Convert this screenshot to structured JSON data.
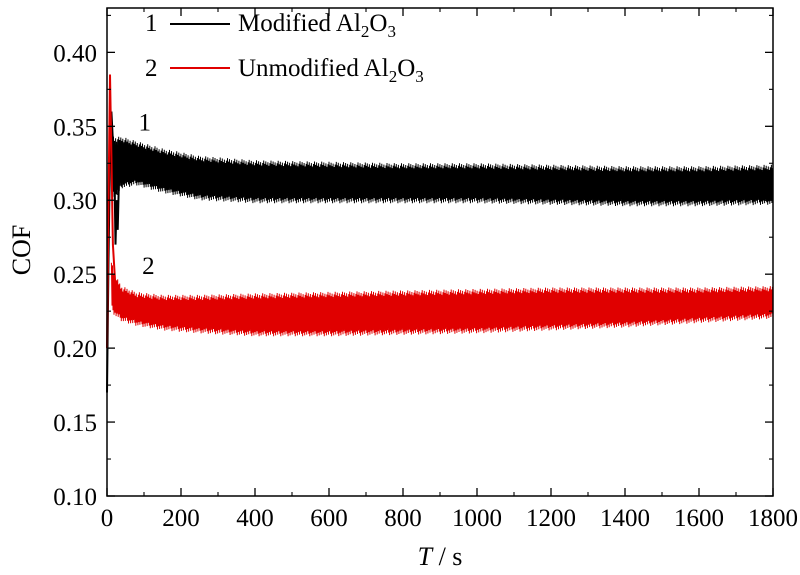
{
  "chart_data": {
    "type": "line",
    "xlabel_italic": "T",
    "xlabel_rest": " / s",
    "ylabel": "COF",
    "xlim": [
      0,
      1800
    ],
    "ylim": [
      0.1,
      0.43
    ],
    "xticks": [
      0,
      200,
      400,
      600,
      800,
      1000,
      1200,
      1400,
      1600,
      1800
    ],
    "yticks": [
      0.1,
      0.15,
      0.2,
      0.25,
      0.3,
      0.35,
      0.4
    ],
    "xtick_labels": [
      "0",
      "200",
      "400",
      "600",
      "800",
      "1000",
      "1200",
      "1400",
      "1600",
      "1800"
    ],
    "ytick_labels": [
      "0.10",
      "0.15",
      "0.20",
      "0.25",
      "0.30",
      "0.35",
      "0.40"
    ],
    "grid": false,
    "legend_position": "top-center",
    "series": [
      {
        "id": "1",
        "name": "Modified Al2O3",
        "legend_prefix": "Modified Al",
        "legend_sub1": "2",
        "legend_mid": "O",
        "legend_sub2": "3",
        "color": "#000000",
        "curve_label": "1",
        "label_at": [
          85,
          0.347
        ],
        "band": {
          "x": [
            12,
            20,
            40,
            80,
            150,
            250,
            400,
            600,
            800,
            1000,
            1200,
            1400,
            1600,
            1800
          ],
          "low": [
            0.305,
            0.3,
            0.308,
            0.31,
            0.305,
            0.3,
            0.298,
            0.298,
            0.298,
            0.298,
            0.297,
            0.296,
            0.296,
            0.297
          ],
          "high": [
            0.345,
            0.343,
            0.343,
            0.34,
            0.335,
            0.33,
            0.327,
            0.326,
            0.325,
            0.325,
            0.324,
            0.323,
            0.323,
            0.324
          ]
        },
        "initial": [
          [
            0,
            0.17
          ],
          [
            4,
            0.26
          ],
          [
            8,
            0.33
          ],
          [
            12,
            0.36
          ],
          [
            16,
            0.34
          ],
          [
            20,
            0.31
          ]
        ],
        "spike": [
          [
            20,
            0.32
          ],
          [
            23,
            0.27
          ],
          [
            26,
            0.3
          ],
          [
            29,
            0.28
          ],
          [
            32,
            0.31
          ]
        ]
      },
      {
        "id": "2",
        "name": "Unmodified Al2O3",
        "legend_prefix": "Unmodified Al",
        "legend_sub1": "2",
        "legend_mid": "O",
        "legend_sub2": "3",
        "color": "#e00000",
        "curve_label": "2",
        "label_at": [
          95,
          0.25
        ],
        "band": {
          "x": [
            12,
            20,
            40,
            80,
            150,
            250,
            400,
            600,
            800,
            1000,
            1200,
            1400,
            1600,
            1800
          ],
          "low": [
            0.226,
            0.222,
            0.218,
            0.215,
            0.212,
            0.21,
            0.208,
            0.208,
            0.209,
            0.21,
            0.212,
            0.214,
            0.217,
            0.22
          ],
          "high": [
            0.26,
            0.25,
            0.242,
            0.238,
            0.236,
            0.236,
            0.237,
            0.238,
            0.239,
            0.24,
            0.241,
            0.241,
            0.241,
            0.242
          ]
        },
        "initial": [
          [
            0,
            0.2
          ],
          [
            4,
            0.3
          ],
          [
            8,
            0.385
          ],
          [
            12,
            0.33
          ],
          [
            16,
            0.27
          ],
          [
            22,
            0.245
          ],
          [
            30,
            0.238
          ]
        ]
      }
    ]
  }
}
